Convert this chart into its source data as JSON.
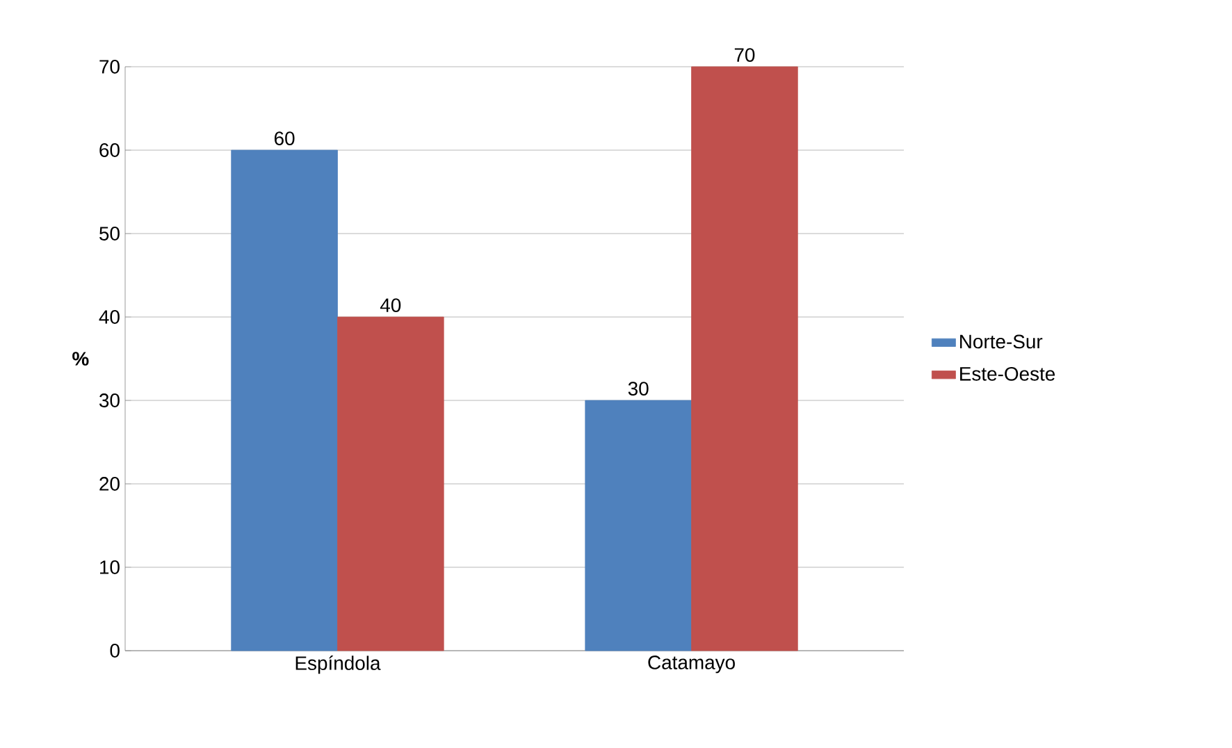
{
  "chart_data": {
    "type": "bar",
    "ylabel": "%",
    "categories": [
      "Espíndola",
      "Catamayo"
    ],
    "series": [
      {
        "name": "Norte-Sur",
        "color": "#4f81bd",
        "values": [
          60,
          30
        ]
      },
      {
        "name": "Este-Oeste",
        "color": "#c0504d",
        "values": [
          40,
          70
        ]
      }
    ],
    "ylim": [
      0,
      70
    ],
    "yticks": [
      0,
      10,
      20,
      30,
      40,
      50,
      60,
      70
    ],
    "grid": "y",
    "legend": "right",
    "data_labels": true
  }
}
